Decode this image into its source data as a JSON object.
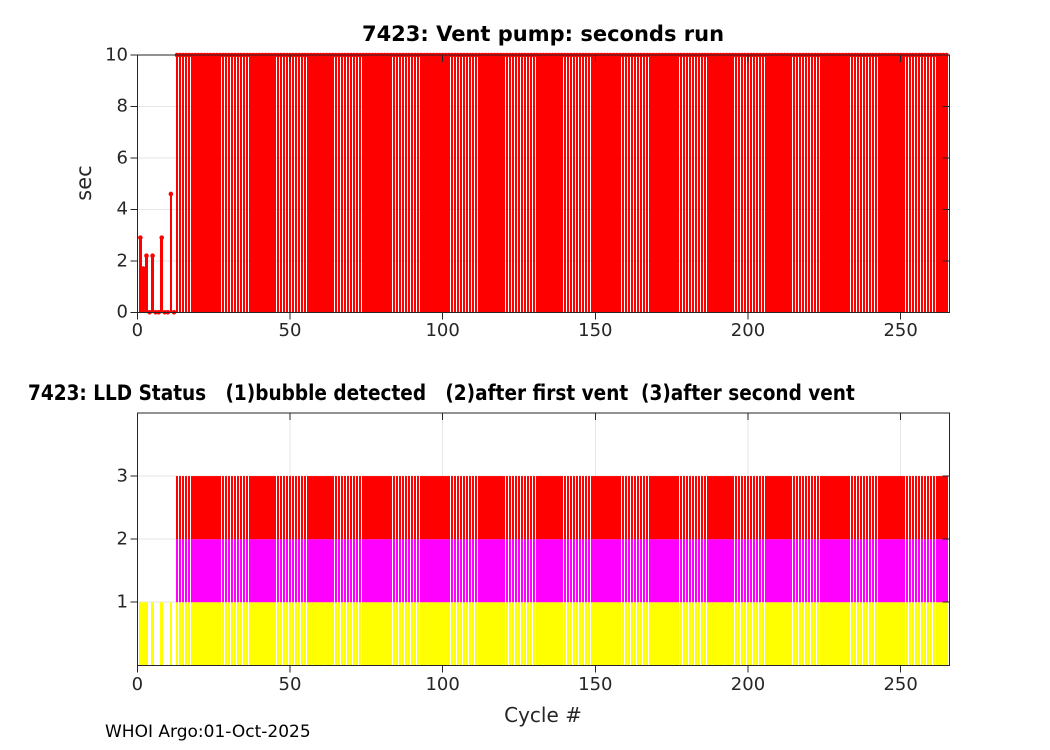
{
  "figure": {
    "background": "#ffffff",
    "footer": "WHOI Argo:01-Oct-2025",
    "float_id": "7423"
  },
  "top_chart": {
    "title": "7423: Vent pump: seconds run",
    "ylabel": "sec",
    "yticks": [
      0,
      2,
      4,
      6,
      8,
      10
    ],
    "xticks": [
      0,
      50,
      100,
      150,
      200,
      250
    ],
    "stem_color": "#ff0000",
    "grid_color": "#e6e6e6",
    "axis_color": "#262626"
  },
  "bottom_chart": {
    "title": "7423: LLD Status   (1)bubble detected   (2)after first vent  (3)after second vent",
    "xlabel": "Cycle #",
    "yticks": [
      1,
      2,
      3
    ],
    "xticks": [
      0,
      50,
      100,
      150,
      200,
      250
    ],
    "grid_color": "#e6e6e6",
    "axis_color": "#262626"
  },
  "chart_data": [
    {
      "type": "stem",
      "title": "7423: Vent pump: seconds run",
      "xlabel": "",
      "ylabel": "sec",
      "xlim": [
        0,
        266
      ],
      "ylim": [
        0,
        10
      ],
      "grid": true,
      "color": "#ff0000",
      "points_early_cycles": [
        [
          1,
          2.9
        ],
        [
          2,
          1.7
        ],
        [
          3,
          2.2
        ],
        [
          4,
          0
        ],
        [
          5,
          2.2
        ],
        [
          6,
          0
        ],
        [
          7,
          0
        ],
        [
          8,
          2.9
        ],
        [
          9,
          0
        ],
        [
          10,
          0
        ],
        [
          11,
          4.6
        ],
        [
          12,
          0
        ]
      ],
      "plateau": {
        "from_cycle": 13,
        "to_cycle": 265,
        "value": 10
      }
    },
    {
      "type": "bar",
      "title": "7423: LLD Status   (1)bubble detected   (2)after first vent  (3)after second vent",
      "xlabel": "Cycle #",
      "ylabel": "",
      "xlim": [
        0,
        266
      ],
      "ylim": [
        0,
        4
      ],
      "grid": true,
      "status_levels": [
        {
          "value": 1,
          "label": "bubble detected",
          "color": "#ffff00"
        },
        {
          "value": 2,
          "label": "after first vent",
          "color": "#ff00ff"
        },
        {
          "value": 3,
          "label": "after second vent",
          "color": "#ff0000"
        }
      ],
      "cycles_status_1_only": [
        1,
        2,
        3,
        5,
        8,
        11
      ],
      "cycles_status_1_2_3": {
        "from_cycle": 13,
        "to_cycle": 265
      }
    }
  ]
}
